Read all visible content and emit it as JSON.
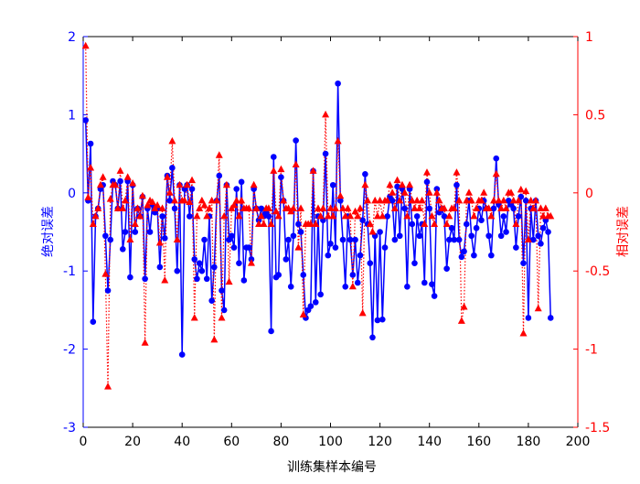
{
  "chart_data": {
    "type": "line",
    "x_label": "训练集样本编号",
    "y_label": "绝对误差",
    "y2_label": "相对误差",
    "xlim": [
      0,
      200
    ],
    "xticks": [
      0,
      20,
      40,
      60,
      80,
      100,
      120,
      140,
      160,
      180,
      200
    ],
    "ylim": [
      -3,
      2
    ],
    "yticks": [
      -3,
      -2,
      -1,
      0,
      1,
      2
    ],
    "y2lim": [
      -1.5,
      1
    ],
    "y2ticks": [
      -1.5,
      -1,
      -0.5,
      0,
      0.5,
      1
    ],
    "x": [
      1,
      2,
      3,
      4,
      5,
      6,
      7,
      8,
      9,
      10,
      11,
      12,
      13,
      14,
      15,
      16,
      17,
      18,
      19,
      20,
      21,
      22,
      23,
      24,
      25,
      26,
      27,
      28,
      29,
      30,
      31,
      32,
      33,
      34,
      35,
      36,
      37,
      38,
      39,
      40,
      41,
      42,
      43,
      44,
      45,
      46,
      47,
      48,
      49,
      50,
      51,
      52,
      53,
      54,
      55,
      56,
      57,
      58,
      59,
      60,
      61,
      62,
      63,
      64,
      65,
      66,
      67,
      68,
      69,
      70,
      71,
      72,
      73,
      74,
      75,
      76,
      77,
      78,
      79,
      80,
      81,
      82,
      83,
      84,
      85,
      86,
      87,
      88,
      89,
      90,
      91,
      92,
      93,
      94,
      95,
      96,
      97,
      98,
      99,
      100,
      101,
      102,
      103,
      104,
      105,
      106,
      107,
      108,
      109,
      110,
      111,
      112,
      113,
      114,
      115,
      116,
      117,
      118,
      119,
      120,
      121,
      122,
      123,
      124,
      125,
      126,
      127,
      128,
      129,
      130,
      131,
      132,
      133,
      134,
      135,
      136,
      137,
      138,
      139,
      140,
      141,
      142,
      143,
      144,
      145,
      146,
      147,
      148,
      149,
      150,
      151,
      152,
      153,
      154,
      155,
      156,
      157,
      158,
      159,
      160,
      161,
      162,
      163,
      164,
      165,
      166,
      167,
      168,
      169,
      170,
      171,
      172,
      173,
      174,
      175,
      176,
      177,
      178,
      179,
      180,
      181,
      182,
      183,
      184,
      185,
      186,
      187,
      188,
      189
    ],
    "series": [
      {
        "color": "#0000ff",
        "values": [
          0.93,
          -0.1,
          0.63,
          -1.65,
          -0.3,
          -0.2,
          0.05,
          0.1,
          -0.55,
          -1.25,
          -0.6,
          0.15,
          0.1,
          -0.2,
          0.15,
          -0.72,
          -0.5,
          0.15,
          -1.08,
          0.1,
          -0.5,
          -0.2,
          -0.3,
          -0.05,
          -1.1,
          -0.2,
          -0.5,
          -0.15,
          -0.25,
          -0.2,
          -0.95,
          -0.3,
          -0.58,
          0.22,
          -0.1,
          0.32,
          -0.2,
          -1.0,
          0.1,
          -2.07,
          0.05,
          0.1,
          -0.3,
          0.05,
          -0.85,
          -1.1,
          -0.9,
          -1.0,
          -0.6,
          -1.1,
          -0.3,
          -1.38,
          -0.95,
          -0.1,
          0.22,
          -1.25,
          -1.5,
          0.1,
          -0.6,
          -0.55,
          -0.7,
          0.05,
          -0.9,
          0.14,
          -1.12,
          -0.7,
          -0.7,
          -0.85,
          0.05,
          -0.2,
          -0.35,
          -0.2,
          -0.3,
          -0.25,
          -0.3,
          -1.77,
          0.46,
          -1.08,
          -1.05,
          0.2,
          -0.1,
          -0.85,
          -0.6,
          -1.2,
          -0.55,
          0.67,
          -0.4,
          -0.5,
          -1.05,
          -1.6,
          -1.5,
          -1.45,
          0.28,
          -1.4,
          -0.3,
          -1.3,
          -0.35,
          0.5,
          -0.8,
          -0.65,
          0.1,
          -0.7,
          1.4,
          -0.1,
          -0.6,
          -1.2,
          -0.3,
          -0.6,
          -1.05,
          -0.6,
          -1.15,
          -0.8,
          -0.35,
          0.24,
          -0.4,
          -0.9,
          -1.85,
          -0.55,
          -1.63,
          -0.5,
          -1.62,
          -0.7,
          -0.3,
          -0.05,
          -0.1,
          -0.6,
          0.08,
          -0.55,
          0.05,
          -0.2,
          -1.2,
          0.05,
          -0.4,
          -0.9,
          -0.3,
          -0.55,
          -0.4,
          -1.15,
          0.14,
          -0.2,
          -1.17,
          -1.32,
          0.05,
          -0.25,
          -0.2,
          -0.3,
          -0.97,
          -0.6,
          -0.45,
          -0.6,
          0.1,
          -0.6,
          -0.82,
          -0.75,
          -0.4,
          -0.1,
          -0.55,
          -0.8,
          -0.45,
          -0.2,
          -0.35,
          -0.1,
          -0.2,
          -0.55,
          -0.8,
          -0.2,
          0.44,
          -0.15,
          -0.55,
          -0.3,
          -0.5,
          -0.1,
          -0.15,
          -0.2,
          -0.7,
          -0.3,
          -0.05,
          -0.9,
          -0.1,
          -1.6,
          -0.2,
          -0.6,
          -0.1,
          -0.55,
          -0.65,
          -0.45,
          -0.35,
          -0.5,
          -1.6
        ]
      },
      {
        "color": "#ff0000",
        "axis": "y2",
        "values": [
          0.94,
          -0.03,
          0.16,
          -0.2,
          -0.15,
          -0.1,
          0.05,
          0.1,
          -0.52,
          -1.24,
          -0.04,
          0.05,
          0.05,
          -0.1,
          0.14,
          -0.1,
          -0.05,
          0.1,
          -0.3,
          0.06,
          -0.2,
          -0.1,
          -0.15,
          -0.02,
          -0.96,
          -0.08,
          -0.05,
          -0.06,
          -0.1,
          -0.08,
          -0.32,
          -0.1,
          -0.56,
          0.1,
          0.0,
          0.33,
          -0.05,
          -0.3,
          0.05,
          -0.05,
          -0.05,
          0.05,
          -0.06,
          0.08,
          -0.8,
          -0.15,
          -0.1,
          -0.05,
          -0.08,
          -0.15,
          -0.1,
          -0.05,
          -0.94,
          -0.05,
          0.24,
          -0.8,
          -0.15,
          0.05,
          -0.57,
          -0.1,
          -0.08,
          -0.05,
          -0.15,
          -0.05,
          -0.1,
          -0.1,
          -0.1,
          -0.45,
          0.05,
          -0.1,
          -0.2,
          -0.15,
          -0.2,
          -0.1,
          -0.1,
          -0.2,
          0.14,
          -0.12,
          -0.15,
          0.15,
          -0.05,
          -0.1,
          -0.1,
          -0.12,
          -0.1,
          0.18,
          -0.35,
          -0.1,
          -0.78,
          -0.2,
          -0.2,
          -0.2,
          0.14,
          -0.2,
          -0.1,
          -0.15,
          -0.1,
          0.5,
          -0.15,
          -0.1,
          -0.15,
          -0.1,
          0.33,
          -0.02,
          -0.1,
          -0.15,
          -0.1,
          -0.15,
          -0.6,
          -0.12,
          -0.15,
          -0.1,
          -0.77,
          0.05,
          -0.05,
          -0.2,
          -0.25,
          -0.05,
          -0.15,
          -0.05,
          -0.15,
          -0.05,
          -0.05,
          0.05,
          0.0,
          -0.1,
          0.08,
          -0.05,
          0.05,
          0.0,
          -0.15,
          0.05,
          -0.05,
          -0.1,
          -0.05,
          -0.1,
          -0.05,
          -0.2,
          0.13,
          0.0,
          -0.15,
          -0.2,
          0.0,
          -0.05,
          -0.1,
          -0.1,
          -0.2,
          -0.15,
          -0.1,
          -0.1,
          0.13,
          -0.05,
          -0.82,
          -0.73,
          -0.05,
          0.0,
          -0.05,
          -0.15,
          -0.1,
          -0.05,
          -0.05,
          0.0,
          -0.1,
          -0.1,
          -0.15,
          -0.05,
          0.12,
          -0.05,
          -0.1,
          -0.05,
          -0.1,
          0.0,
          0.0,
          -0.05,
          -0.2,
          -0.05,
          0.02,
          -0.9,
          0.01,
          -0.3,
          -0.05,
          -0.1,
          -0.05,
          -0.74,
          -0.1,
          -0.15,
          -0.1,
          -0.15,
          -0.15
        ]
      }
    ]
  }
}
